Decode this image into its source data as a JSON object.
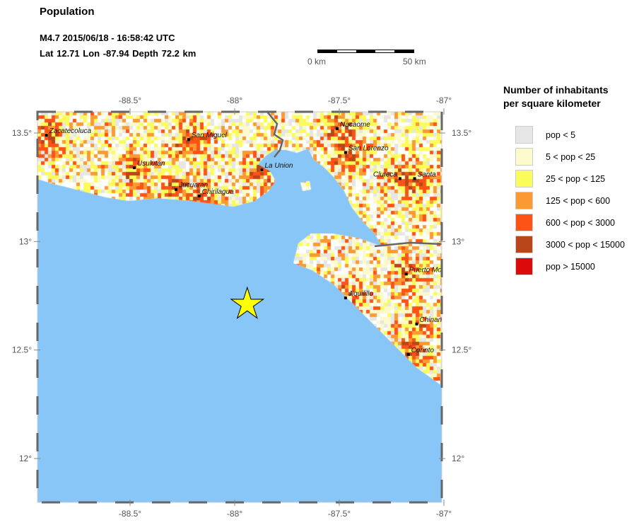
{
  "header": {
    "title": "Population",
    "event_line": "M4.7  2015/06/18 - 16:58:42 UTC",
    "location_line": "Lat 12.71    Lon -87.94     Depth  72.2 km"
  },
  "scale_bar": {
    "start_label": "0 km",
    "end_label": "50 km"
  },
  "map": {
    "lon_range": [
      -88.94,
      -87.0
    ],
    "lat_range": [
      11.8,
      13.6
    ],
    "lon_ticks": [
      {
        "v": -88.5,
        "label": "-88.5°"
      },
      {
        "v": -88,
        "label": "-88°"
      },
      {
        "v": -87.5,
        "label": "-87.5°"
      },
      {
        "v": -87,
        "label": "-87°"
      }
    ],
    "lat_ticks": [
      {
        "v": 13.5,
        "label": "13.5°"
      },
      {
        "v": 13,
        "label": "13°"
      },
      {
        "v": 12.5,
        "label": "12.5°"
      },
      {
        "v": 12,
        "label": "12°"
      }
    ],
    "water_color": "#88c6f8",
    "epicenter": {
      "lat": 12.71,
      "lon": -87.94,
      "icon": "star-icon",
      "color": "#ffff00"
    },
    "cities": [
      {
        "name": "Zacatecoluca",
        "lon": -88.9,
        "lat": 13.49
      },
      {
        "name": "San Miguel",
        "lon": -88.22,
        "lat": 13.47
      },
      {
        "name": "Usulutan",
        "lon": -88.48,
        "lat": 13.34
      },
      {
        "name": "Jucuaran",
        "lon": -88.28,
        "lat": 13.24
      },
      {
        "name": "Chirilagua",
        "lon": -88.17,
        "lat": 13.21
      },
      {
        "name": "La Union",
        "lon": -87.87,
        "lat": 13.33
      },
      {
        "name": "Nacaome",
        "lon": -87.51,
        "lat": 13.52
      },
      {
        "name": "San Lorenzo",
        "lon": -87.47,
        "lat": 13.41
      },
      {
        "name": "Cluteca",
        "lon": -87.21,
        "lat": 13.29
      },
      {
        "name": "Santa",
        "lon": -87.14,
        "lat": 13.29
      },
      {
        "name": "Puerto Mo",
        "lon": -87.18,
        "lat": 12.85
      },
      {
        "name": "Jiquilillo",
        "lon": -87.47,
        "lat": 12.74
      },
      {
        "name": "Chinan",
        "lon": -87.13,
        "lat": 12.62
      },
      {
        "name": "Corinto",
        "lon": -87.17,
        "lat": 12.48
      }
    ]
  },
  "legend": {
    "title_line1": "Number of inhabitants",
    "title_line2": "per square kilometer",
    "items": [
      {
        "label": "pop < 5",
        "color": "#e6e6e6"
      },
      {
        "label": "5 < pop < 25",
        "color": "#fcfacb"
      },
      {
        "label": "25 < pop < 125",
        "color": "#fbfb5a"
      },
      {
        "label": "125 < pop < 600",
        "color": "#fb9a34"
      },
      {
        "label": "600 < pop < 3000",
        "color": "#fd5316"
      },
      {
        "label": "3000 < pop < 15000",
        "color": "#b9461a"
      },
      {
        "label": "pop > 15000",
        "color": "#dc0a0a"
      }
    ]
  }
}
